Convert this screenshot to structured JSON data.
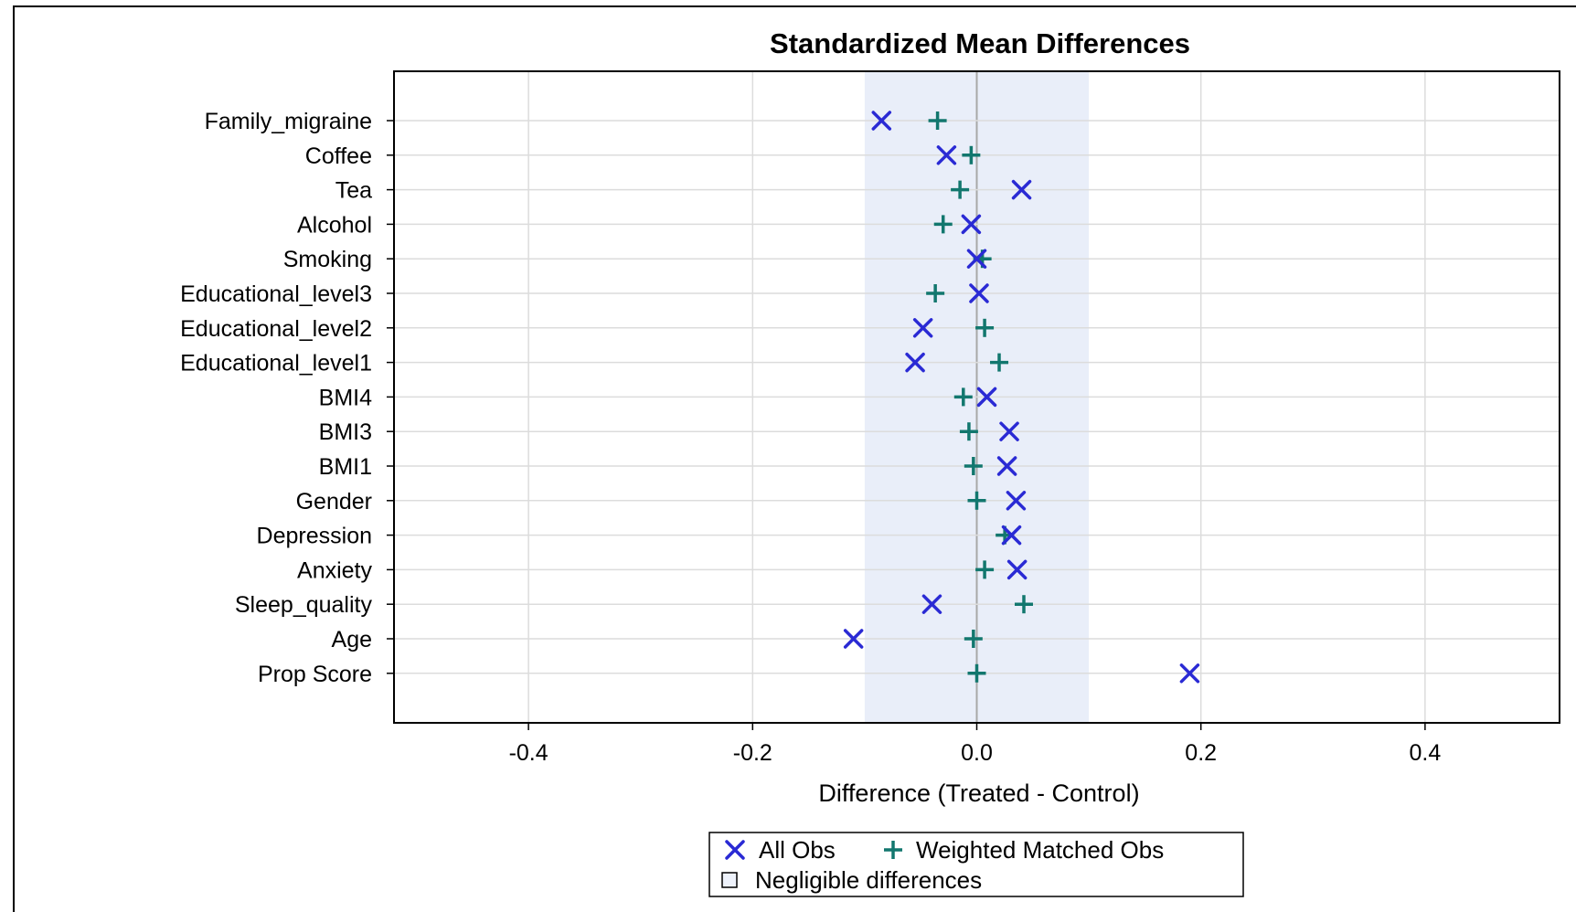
{
  "chart_data": {
    "type": "scatter",
    "title": "Standardized Mean Differences",
    "xlabel": "Difference (Treated - Control)",
    "ylabel": "",
    "xlim": [
      -0.52,
      0.52
    ],
    "xticks": [
      -0.4,
      -0.2,
      0.0,
      0.2,
      0.4
    ],
    "xtick_labels": [
      "-0.4",
      "-0.2",
      "0.0",
      "0.2",
      "0.4"
    ],
    "grid": true,
    "negligible_band": [
      -0.1,
      0.1
    ],
    "categories": [
      "Family_migraine",
      "Coffee",
      "Tea",
      "Alcohol",
      "Smoking",
      "Educational_level3",
      "Educational_level2",
      "Educational_level1",
      "BMI4",
      "BMI3",
      "BMI1",
      "Gender",
      "Depression",
      "Anxiety",
      "Sleep_quality",
      "Age",
      "Prop Score"
    ],
    "series": [
      {
        "name": "All Obs",
        "marker": "x",
        "color": "#2a2ad4",
        "values": [
          -0.085,
          -0.027,
          0.04,
          -0.005,
          0.0,
          0.002,
          -0.048,
          -0.055,
          0.009,
          0.029,
          0.027,
          0.035,
          0.031,
          0.036,
          -0.04,
          -0.11,
          0.19
        ]
      },
      {
        "name": "Weighted Matched Obs",
        "marker": "+",
        "color": "#12776e",
        "values": [
          -0.035,
          -0.005,
          -0.015,
          -0.03,
          0.005,
          -0.037,
          0.007,
          0.02,
          -0.012,
          -0.007,
          -0.003,
          0.0,
          0.025,
          0.007,
          0.042,
          -0.003,
          0.0
        ]
      }
    ],
    "legend": {
      "placement": "bottom",
      "items": [
        "All Obs",
        "Weighted Matched Obs"
      ],
      "band_label": "Negligible differences"
    }
  }
}
